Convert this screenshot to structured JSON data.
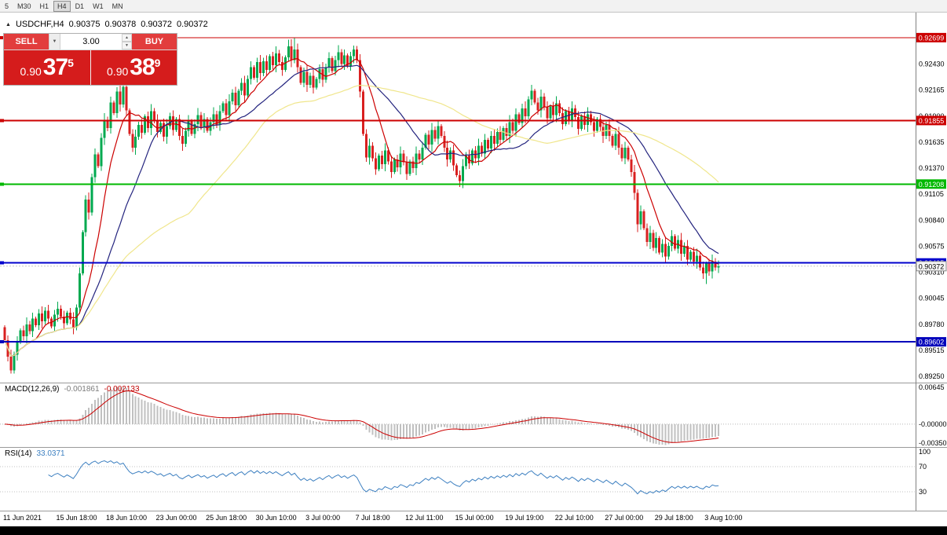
{
  "toolbar": {
    "timeframes": [
      {
        "label": "5",
        "active": false
      },
      {
        "label": "M30",
        "active": false
      },
      {
        "label": "H1",
        "active": false
      },
      {
        "label": "H4",
        "active": true
      },
      {
        "label": "D1",
        "active": false
      },
      {
        "label": "W1",
        "active": false
      },
      {
        "label": "MN",
        "active": false
      }
    ]
  },
  "icons": {
    "collapse": "▲",
    "dropdown": "▼",
    "spin_up": "▲",
    "spin_down": "▼"
  },
  "trade_panel": {
    "sell_label": "SELL",
    "buy_label": "BUY",
    "volume": "3.00",
    "sell_price": {
      "prefix": "0.90",
      "digits": "37",
      "sup": "5"
    },
    "buy_price": {
      "prefix": "0.90",
      "digits": "38",
      "sup": "9"
    }
  },
  "chart_data": {
    "type": "candlestick",
    "symbol": "USDCHF",
    "timeframe": "H4",
    "symbol_display": "USDCHF,H4",
    "ohlc_display": {
      "open": "0.90375",
      "high": "0.90378",
      "low": "0.90372",
      "close": "0.90372"
    },
    "price_ylim": [
      0.89195,
      0.92954
    ],
    "first_open": 0.8975,
    "closes": [
      0.8962,
      0.8945,
      0.8931,
      0.8947,
      0.896,
      0.8972,
      0.8966,
      0.8978,
      0.8971,
      0.8984,
      0.8977,
      0.8989,
      0.8981,
      0.8992,
      0.8984,
      0.8976,
      0.8988,
      0.8994,
      0.8986,
      0.8979,
      0.899,
      0.8983,
      0.8975,
      0.8995,
      0.903,
      0.9072,
      0.9105,
      0.9092,
      0.9128,
      0.9151,
      0.9139,
      0.9168,
      0.9186,
      0.9178,
      0.9204,
      0.9193,
      0.9215,
      0.9202,
      0.922,
      0.9196,
      0.9172,
      0.9158,
      0.9169,
      0.9181,
      0.9173,
      0.919,
      0.9178,
      0.9195,
      0.9186,
      0.9174,
      0.9183,
      0.9169,
      0.918,
      0.919,
      0.9176,
      0.9187,
      0.917,
      0.9162,
      0.9175,
      0.9185,
      0.9172,
      0.9182,
      0.9191,
      0.9179,
      0.9187,
      0.9175,
      0.9184,
      0.9192,
      0.9181,
      0.9195,
      0.9203,
      0.9191,
      0.9205,
      0.9214,
      0.9201,
      0.9216,
      0.9224,
      0.9211,
      0.9228,
      0.924,
      0.9229,
      0.9245,
      0.9234,
      0.9246,
      0.9237,
      0.9251,
      0.9242,
      0.9254,
      0.9245,
      0.9237,
      0.925,
      0.9261,
      0.9247,
      0.9258,
      0.924,
      0.9224,
      0.9235,
      0.9222,
      0.9231,
      0.9219,
      0.9228,
      0.9238,
      0.9227,
      0.924,
      0.9249,
      0.9236,
      0.9247,
      0.9255,
      0.9243,
      0.9252,
      0.9241,
      0.9251,
      0.9258,
      0.9247,
      0.9215,
      0.9172,
      0.9148,
      0.916,
      0.9147,
      0.9136,
      0.915,
      0.9141,
      0.9155,
      0.9144,
      0.9133,
      0.9146,
      0.9138,
      0.9152,
      0.9143,
      0.9131,
      0.9144,
      0.9137,
      0.9152,
      0.9146,
      0.9158,
      0.9171,
      0.9161,
      0.9176,
      0.9167,
      0.918,
      0.917,
      0.9158,
      0.9146,
      0.9155,
      0.914,
      0.913,
      0.9124,
      0.9139,
      0.915,
      0.9142,
      0.9155,
      0.9147,
      0.916,
      0.9152,
      0.9166,
      0.9157,
      0.917,
      0.9162,
      0.9174,
      0.9166,
      0.9178,
      0.917,
      0.9184,
      0.9175,
      0.9192,
      0.9183,
      0.9198,
      0.919,
      0.9207,
      0.9216,
      0.9204,
      0.9196,
      0.921,
      0.9199,
      0.9188,
      0.92,
      0.9191,
      0.9203,
      0.9193,
      0.9182,
      0.9195,
      0.9186,
      0.9198,
      0.9189,
      0.9177,
      0.919,
      0.9181,
      0.9192,
      0.9184,
      0.9175,
      0.9187,
      0.9179,
      0.917,
      0.9181,
      0.917,
      0.916,
      0.9172,
      0.9158,
      0.9147,
      0.9158,
      0.9146,
      0.9133,
      0.9112,
      0.908,
      0.9093,
      0.9076,
      0.9062,
      0.9071,
      0.9056,
      0.9066,
      0.9051,
      0.906,
      0.9047,
      0.9058,
      0.9068,
      0.9055,
      0.9064,
      0.905,
      0.9058,
      0.9044,
      0.9052,
      0.9042,
      0.9048,
      0.9036,
      0.903,
      0.904,
      0.9032,
      0.9042,
      0.9036,
      0.90372
    ],
    "wick_overrides": {
      "2": {
        "l": 0.8928
      },
      "91": {
        "h": 0.9268
      },
      "93": {
        "h": 0.92699
      },
      "112": {
        "h": 0.9262
      },
      "146": {
        "l": 0.9118
      },
      "203": {
        "l": 0.9072
      },
      "225": {
        "l": 0.9019
      }
    },
    "candle_colors": {
      "up": "#00a94f",
      "down": "#d92020"
    },
    "moving_averages": [
      {
        "period": 10,
        "color": "#cc0000"
      },
      {
        "period": 24,
        "color": "#23237e"
      },
      {
        "period": 60,
        "color": "#f0e68c"
      }
    ],
    "horizontal_lines": [
      {
        "price": 0.92699,
        "label": "0.92699",
        "color": "#cc0000",
        "width": 1
      },
      {
        "price": 0.91855,
        "label": "0.91855",
        "color": "#cc0000",
        "width": 2
      },
      {
        "price": 0.91208,
        "label": "0.91208",
        "color": "#00b800",
        "width": 2
      },
      {
        "price": 0.90405,
        "label": "0.90405",
        "color": "#0000cc",
        "width": 2
      },
      {
        "price": 0.89602,
        "label": "0.89602",
        "color": "#0000bb",
        "width": 2
      }
    ],
    "current_price": {
      "price": 0.90372,
      "label": "0.90372"
    },
    "price_ticks": [
      "0.92430",
      "0.92165",
      "0.91900",
      "0.91635",
      "0.91370",
      "0.91105",
      "0.90840",
      "0.90575",
      "0.90310",
      "0.90045",
      "0.89780",
      "0.89515",
      "0.89250"
    ],
    "macd": {
      "params": "MACD(12,26,9)",
      "fast": 12,
      "slow": 26,
      "signal": 9,
      "value_main": "-0.001861",
      "value_signal": "-0.002133",
      "ylim": [
        -0.0035,
        0.00645
      ],
      "axis_labels": [
        {
          "text": "0.00645",
          "v": 0.00645
        },
        {
          "text": "-0.00000",
          "v": 0
        },
        {
          "text": "-0.00350",
          "v": -0.0035
        }
      ],
      "histogram_color": "#c0c0c0",
      "signal_color": "#cc0000"
    },
    "rsi": {
      "params": "RSI(14)",
      "period": 14,
      "value": "33.0371",
      "levels": [
        70,
        30
      ],
      "axis_labels": [
        {
          "text": "100",
          "v": 100
        },
        {
          "text": "70",
          "v": 70
        },
        {
          "text": "30",
          "v": 30
        }
      ],
      "line_color": "#3c7fc0",
      "ylim": [
        0,
        100
      ]
    },
    "time_labels": [
      {
        "i": 0,
        "text": "11 Jun 2021"
      },
      {
        "i": 17,
        "text": "15 Jun 18:00"
      },
      {
        "i": 33,
        "text": "18 Jun 10:00"
      },
      {
        "i": 49,
        "text": "23 Jun 00:00"
      },
      {
        "i": 65,
        "text": "25 Jun 18:00"
      },
      {
        "i": 81,
        "text": "30 Jun 10:00"
      },
      {
        "i": 97,
        "text": "3 Jul 00:00"
      },
      {
        "i": 113,
        "text": "7 Jul 18:00"
      },
      {
        "i": 129,
        "text": "12 Jul 11:00"
      },
      {
        "i": 145,
        "text": "15 Jul 00:00"
      },
      {
        "i": 161,
        "text": "19 Jul 19:00"
      },
      {
        "i": 177,
        "text": "22 Jul 10:00"
      },
      {
        "i": 193,
        "text": "27 Jul 00:00"
      },
      {
        "i": 209,
        "text": "29 Jul 18:00"
      },
      {
        "i": 225,
        "text": "3 Aug 10:00"
      }
    ]
  }
}
